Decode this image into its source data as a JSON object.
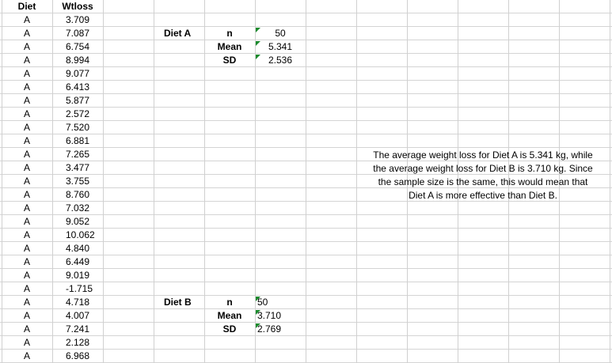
{
  "headers": {
    "diet": "Diet",
    "wtloss": "Wtloss"
  },
  "rows": [
    {
      "diet": "A",
      "wtloss": "3.709"
    },
    {
      "diet": "A",
      "wtloss": "7.087"
    },
    {
      "diet": "A",
      "wtloss": "6.754"
    },
    {
      "diet": "A",
      "wtloss": "8.994"
    },
    {
      "diet": "A",
      "wtloss": "9.077"
    },
    {
      "diet": "A",
      "wtloss": "6.413"
    },
    {
      "diet": "A",
      "wtloss": "5.877"
    },
    {
      "diet": "A",
      "wtloss": "2.572"
    },
    {
      "diet": "A",
      "wtloss": "7.520"
    },
    {
      "diet": "A",
      "wtloss": "6.881"
    },
    {
      "diet": "A",
      "wtloss": "7.265"
    },
    {
      "diet": "A",
      "wtloss": "3.477"
    },
    {
      "diet": "A",
      "wtloss": "3.755"
    },
    {
      "diet": "A",
      "wtloss": "8.760"
    },
    {
      "diet": "A",
      "wtloss": "7.032"
    },
    {
      "diet": "A",
      "wtloss": "9.052"
    },
    {
      "diet": "A",
      "wtloss": "10.062"
    },
    {
      "diet": "A",
      "wtloss": "4.840"
    },
    {
      "diet": "A",
      "wtloss": "6.449"
    },
    {
      "diet": "A",
      "wtloss": "9.019"
    },
    {
      "diet": "A",
      "wtloss": "-1.715"
    },
    {
      "diet": "A",
      "wtloss": "4.718"
    },
    {
      "diet": "A",
      "wtloss": "4.007"
    },
    {
      "diet": "A",
      "wtloss": "7.241"
    },
    {
      "diet": "A",
      "wtloss": "2.128"
    },
    {
      "diet": "A",
      "wtloss": "6.968"
    }
  ],
  "summary_a": {
    "label": "Diet A",
    "n_label": "n",
    "n_value": "50",
    "mean_label": "Mean",
    "mean_value": "5.341",
    "sd_label": "SD",
    "sd_value": "2.536"
  },
  "summary_b": {
    "label": "Diet B",
    "n_label": "n",
    "n_value": "50",
    "mean_label": "Mean",
    "mean_value": "3.710",
    "sd_label": "SD",
    "sd_value": "2.769"
  },
  "note": {
    "line1": "The average weight loss for Diet A is 5.341 kg, while",
    "line2": "the average weight loss for Diet B is 3.710 kg. Since",
    "line3": "the sample size is the same, this would mean that",
    "line4": "Diet A is more effective than Diet B."
  },
  "colors": {
    "gridline": "#d4d4d4",
    "error_indicator": "#1a8a2c"
  }
}
